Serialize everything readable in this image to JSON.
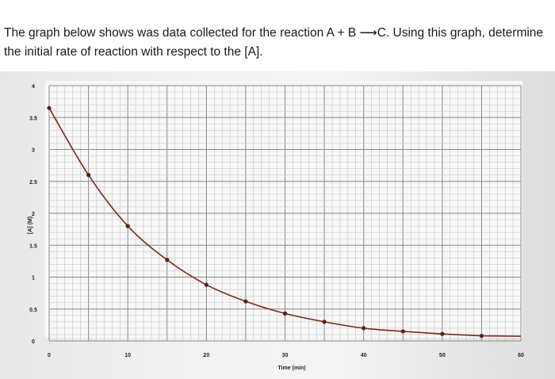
{
  "question": {
    "line1": "The graph below shows was data collected for the reaction A + B ⟶C. Using this graph, determine",
    "line2": "the initial rate of reaction with respect to the [A]."
  },
  "chart_data": {
    "type": "line",
    "title": "",
    "xlabel": "Time (min)",
    "ylabel": "[A] (M)",
    "xlim": [
      0,
      60
    ],
    "ylim": [
      0,
      4
    ],
    "x_ticks": [
      "0",
      "10",
      "20",
      "30",
      "40",
      "50",
      "60"
    ],
    "y_ticks": [
      "0",
      "0.5",
      "1",
      "1.5",
      "2",
      "2.5",
      "3",
      "3.5",
      "4"
    ],
    "grid": true,
    "series": [
      {
        "name": "",
        "color": "#7a2a1a",
        "marker_color": "#5a1f14",
        "x": [
          0,
          5,
          10,
          15,
          20,
          25,
          30,
          35,
          40,
          45,
          50,
          55
        ],
        "y": [
          3.65,
          2.6,
          1.8,
          1.27,
          0.88,
          0.62,
          0.43,
          0.3,
          0.2,
          0.15,
          0.11,
          0.08
        ]
      }
    ]
  }
}
